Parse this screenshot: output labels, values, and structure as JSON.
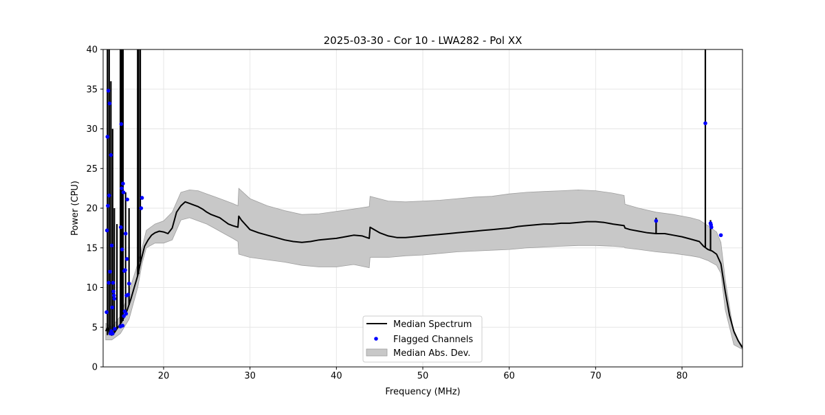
{
  "chart_data": {
    "type": "line",
    "title": "2025-03-30 - Cor 10 - LWA282 - Pol XX",
    "xlabel": "Frequency (MHz)",
    "ylabel": "Power (CPU)",
    "xlim": [
      13,
      87
    ],
    "ylim": [
      0,
      40
    ],
    "xticks": [
      20,
      30,
      40,
      50,
      60,
      70,
      80
    ],
    "yticks": [
      0,
      5,
      10,
      15,
      20,
      25,
      30,
      35,
      40
    ],
    "grid": true,
    "legend_position": "lower-center",
    "legend": {
      "median": "Median Spectrum",
      "flagged": "Flagged Channels",
      "mad": "Median Abs. Dev."
    },
    "colors": {
      "median": "#000000",
      "flagged": "#0000ff",
      "mad": "#c8c8c8",
      "mad_edge": "#9e9e9e",
      "grid": "#e6e6e6"
    },
    "series": [
      {
        "name": "Median Spectrum",
        "x": [
          13.3,
          13.5,
          13.8,
          14.0,
          14.3,
          14.6,
          15.0,
          15.4,
          15.8,
          16.2,
          16.6,
          17.0,
          17.4,
          17.8,
          18.2,
          18.6,
          19.0,
          19.5,
          20.0,
          20.5,
          21.0,
          21.5,
          22.0,
          22.5,
          23.0,
          23.5,
          24.0,
          24.5,
          25.0,
          25.5,
          26.0,
          26.5,
          27.0,
          27.5,
          28.0,
          28.6,
          28.7,
          29.0,
          30.0,
          31.0,
          32.0,
          33.0,
          34.0,
          35.0,
          36.0,
          37.0,
          38.0,
          39.0,
          40.0,
          41.0,
          42.0,
          43.0,
          43.8,
          43.9,
          45.0,
          46.0,
          47.0,
          48.0,
          49.0,
          50.0,
          51.0,
          52.0,
          53.0,
          54.0,
          55.0,
          56.0,
          57.0,
          58.0,
          59.0,
          60.0,
          61.0,
          62.0,
          63.0,
          64.0,
          65.0,
          66.0,
          67.0,
          68.0,
          69.0,
          70.0,
          71.0,
          72.0,
          73.3,
          73.4,
          74.0,
          75.0,
          76.0,
          77.0,
          78.0,
          79.0,
          80.0,
          81.0,
          82.0,
          82.5,
          83.0,
          83.5,
          84.0,
          84.5,
          85.0,
          85.5,
          86.0,
          86.5,
          87.0
        ],
        "y": [
          4.5,
          5.0,
          4.2,
          4.0,
          4.3,
          4.8,
          5.4,
          6.2,
          7.2,
          8.5,
          10.0,
          11.5,
          13.5,
          15.2,
          16.0,
          16.6,
          16.9,
          17.1,
          17.0,
          16.8,
          17.5,
          19.5,
          20.3,
          20.8,
          20.6,
          20.4,
          20.2,
          19.9,
          19.5,
          19.2,
          19.0,
          18.8,
          18.4,
          18.0,
          17.8,
          17.6,
          19.0,
          18.5,
          17.3,
          16.9,
          16.6,
          16.3,
          16.0,
          15.8,
          15.7,
          15.8,
          16.0,
          16.1,
          16.2,
          16.4,
          16.6,
          16.5,
          16.2,
          17.6,
          16.9,
          16.5,
          16.3,
          16.3,
          16.4,
          16.5,
          16.6,
          16.7,
          16.8,
          16.9,
          17.0,
          17.1,
          17.2,
          17.3,
          17.4,
          17.5,
          17.7,
          17.8,
          17.9,
          18.0,
          18.0,
          18.1,
          18.1,
          18.2,
          18.3,
          18.3,
          18.2,
          18.0,
          17.8,
          17.5,
          17.3,
          17.1,
          16.9,
          16.8,
          16.8,
          16.6,
          16.4,
          16.1,
          15.8,
          15.2,
          14.8,
          14.6,
          14.2,
          13.0,
          9.5,
          6.5,
          4.5,
          3.3,
          2.4
        ],
        "spikes": [
          {
            "x": 13.5,
            "y0": 4.0,
            "y1": 40
          },
          {
            "x": 13.7,
            "y0": 4.2,
            "y1": 40
          },
          {
            "x": 13.9,
            "y0": 4.0,
            "y1": 36
          },
          {
            "x": 14.1,
            "y0": 4.1,
            "y1": 30
          },
          {
            "x": 14.3,
            "y0": 4.3,
            "y1": 20
          },
          {
            "x": 14.6,
            "y0": 4.8,
            "y1": 18
          },
          {
            "x": 15.0,
            "y0": 5.4,
            "y1": 40
          },
          {
            "x": 15.15,
            "y0": 5.6,
            "y1": 40
          },
          {
            "x": 15.3,
            "y0": 5.8,
            "y1": 40
          },
          {
            "x": 15.6,
            "y0": 6.5,
            "y1": 22
          },
          {
            "x": 16.0,
            "y0": 7.8,
            "y1": 20
          },
          {
            "x": 17.0,
            "y0": 11.5,
            "y1": 40
          },
          {
            "x": 17.1,
            "y0": 11.7,
            "y1": 40
          },
          {
            "x": 17.3,
            "y0": 13.2,
            "y1": 40
          },
          {
            "x": 82.7,
            "y0": 15.1,
            "y1": 40
          },
          {
            "x": 77.0,
            "y0": 16.8,
            "y1": 18.8
          },
          {
            "x": 83.3,
            "y0": 14.7,
            "y1": 18.5
          }
        ]
      },
      {
        "name": "Median Abs. Dev.",
        "x": [
          13.3,
          14.0,
          15.0,
          16.0,
          17.0,
          17.5,
          18.0,
          19.0,
          20.0,
          21.0,
          22.0,
          23.0,
          24.0,
          25.0,
          26.0,
          27.0,
          28.0,
          28.6,
          28.7,
          30.0,
          32.0,
          34.0,
          36.0,
          38.0,
          40.0,
          42.0,
          43.8,
          43.9,
          46.0,
          48.0,
          50.0,
          52.0,
          54.0,
          56.0,
          58.0,
          60.0,
          62.0,
          64.0,
          66.0,
          68.0,
          70.0,
          72.0,
          73.3,
          73.4,
          75.0,
          77.0,
          79.0,
          81.0,
          82.0,
          83.0,
          84.0,
          84.5,
          85.0,
          86.0,
          87.0
        ],
        "upper": [
          5.5,
          5.0,
          6.4,
          9.5,
          13.0,
          15.0,
          17.2,
          18.0,
          18.4,
          19.5,
          22.0,
          22.3,
          22.2,
          21.8,
          21.4,
          21.0,
          20.6,
          20.3,
          22.5,
          21.2,
          20.3,
          19.7,
          19.2,
          19.3,
          19.6,
          19.9,
          20.2,
          21.5,
          20.9,
          20.8,
          20.9,
          21.0,
          21.2,
          21.4,
          21.5,
          21.8,
          22.0,
          22.1,
          22.2,
          22.3,
          22.2,
          21.9,
          21.6,
          20.5,
          20.0,
          19.5,
          19.2,
          18.8,
          18.5,
          17.8,
          17.0,
          15.7,
          11.0,
          4.2,
          2.6
        ],
        "lower": [
          3.4,
          3.4,
          4.2,
          6.0,
          10.0,
          13.0,
          15.0,
          15.6,
          15.6,
          16.0,
          18.5,
          18.8,
          18.4,
          18.0,
          17.4,
          16.8,
          16.2,
          15.8,
          14.2,
          13.8,
          13.5,
          13.2,
          12.8,
          12.6,
          12.6,
          12.9,
          12.5,
          13.8,
          13.8,
          14.0,
          14.1,
          14.3,
          14.5,
          14.6,
          14.7,
          14.8,
          15.0,
          15.1,
          15.2,
          15.3,
          15.3,
          15.2,
          15.1,
          15.0,
          14.8,
          14.5,
          14.3,
          14.0,
          13.8,
          13.4,
          12.8,
          11.8,
          7.2,
          2.8,
          2.2
        ]
      },
      {
        "name": "Flagged Channels",
        "x": [
          13.4,
          13.45,
          13.5,
          13.55,
          13.6,
          13.65,
          13.7,
          13.75,
          13.8,
          13.85,
          13.9,
          13.95,
          14.0,
          14.05,
          14.1,
          14.15,
          14.2,
          14.25,
          14.3,
          14.35,
          15.0,
          15.05,
          15.1,
          15.15,
          15.2,
          15.25,
          15.3,
          15.35,
          15.4,
          15.45,
          15.5,
          15.55,
          15.6,
          15.65,
          15.7,
          15.75,
          15.8,
          15.9,
          16.0,
          17.4,
          17.5,
          77.0,
          82.7,
          83.3,
          83.35,
          83.4,
          84.5
        ],
        "y": [
          6.9,
          17.2,
          29.0,
          20.3,
          34.8,
          10.6,
          21.6,
          33.2,
          12.0,
          4.2,
          26.7,
          4.5,
          15.3,
          7.5,
          4.2,
          10.6,
          9.5,
          9.0,
          8.6,
          4.8,
          5.1,
          17.6,
          30.6,
          22.5,
          14.8,
          5.2,
          23.1,
          22.0,
          6.4,
          12.1,
          7.0,
          12.2,
          16.8,
          6.7,
          9.0,
          13.6,
          21.1,
          9.1,
          10.5,
          20.0,
          21.3,
          18.4,
          30.7,
          18.1,
          17.9,
          17.6,
          16.6
        ]
      }
    ]
  }
}
